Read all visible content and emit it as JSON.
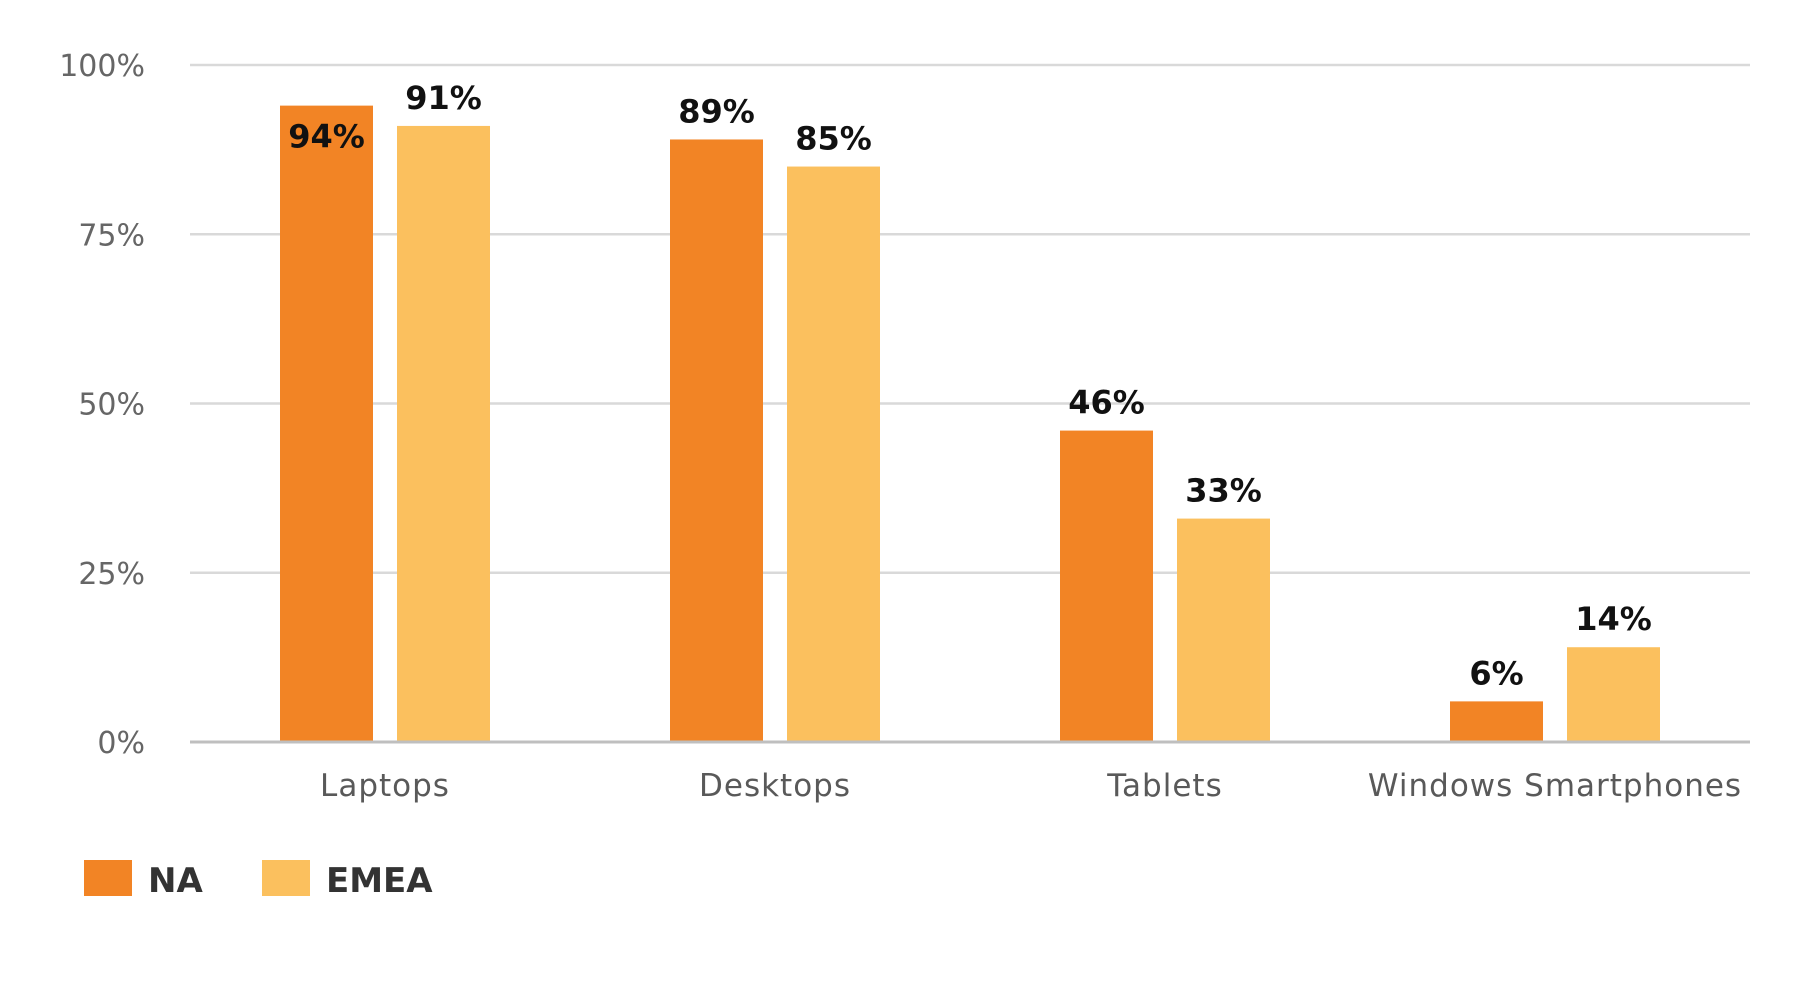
{
  "chart_data": {
    "type": "bar",
    "title": "",
    "xlabel": "",
    "ylabel": "",
    "categories": [
      "Laptops",
      "Desktops",
      "Tablets",
      "Windows Smartphones"
    ],
    "series": [
      {
        "name": "NA",
        "color": "#f28425",
        "values": [
          94,
          89,
          46,
          6
        ],
        "labels": [
          "94%",
          "89%",
          "46%",
          "6%"
        ]
      },
      {
        "name": "EMEA",
        "color": "#fbc05e",
        "values": [
          91,
          85,
          33,
          14
        ],
        "labels": [
          "91%",
          "85%",
          "33%",
          "14%"
        ]
      }
    ],
    "ylim": [
      0,
      100
    ],
    "yticks": [
      0,
      25,
      50,
      75,
      100
    ],
    "ytick_labels": [
      "0%",
      "25%",
      "50%",
      "75%",
      "100%"
    ],
    "grid": true,
    "legend_position": "bottom-left"
  }
}
